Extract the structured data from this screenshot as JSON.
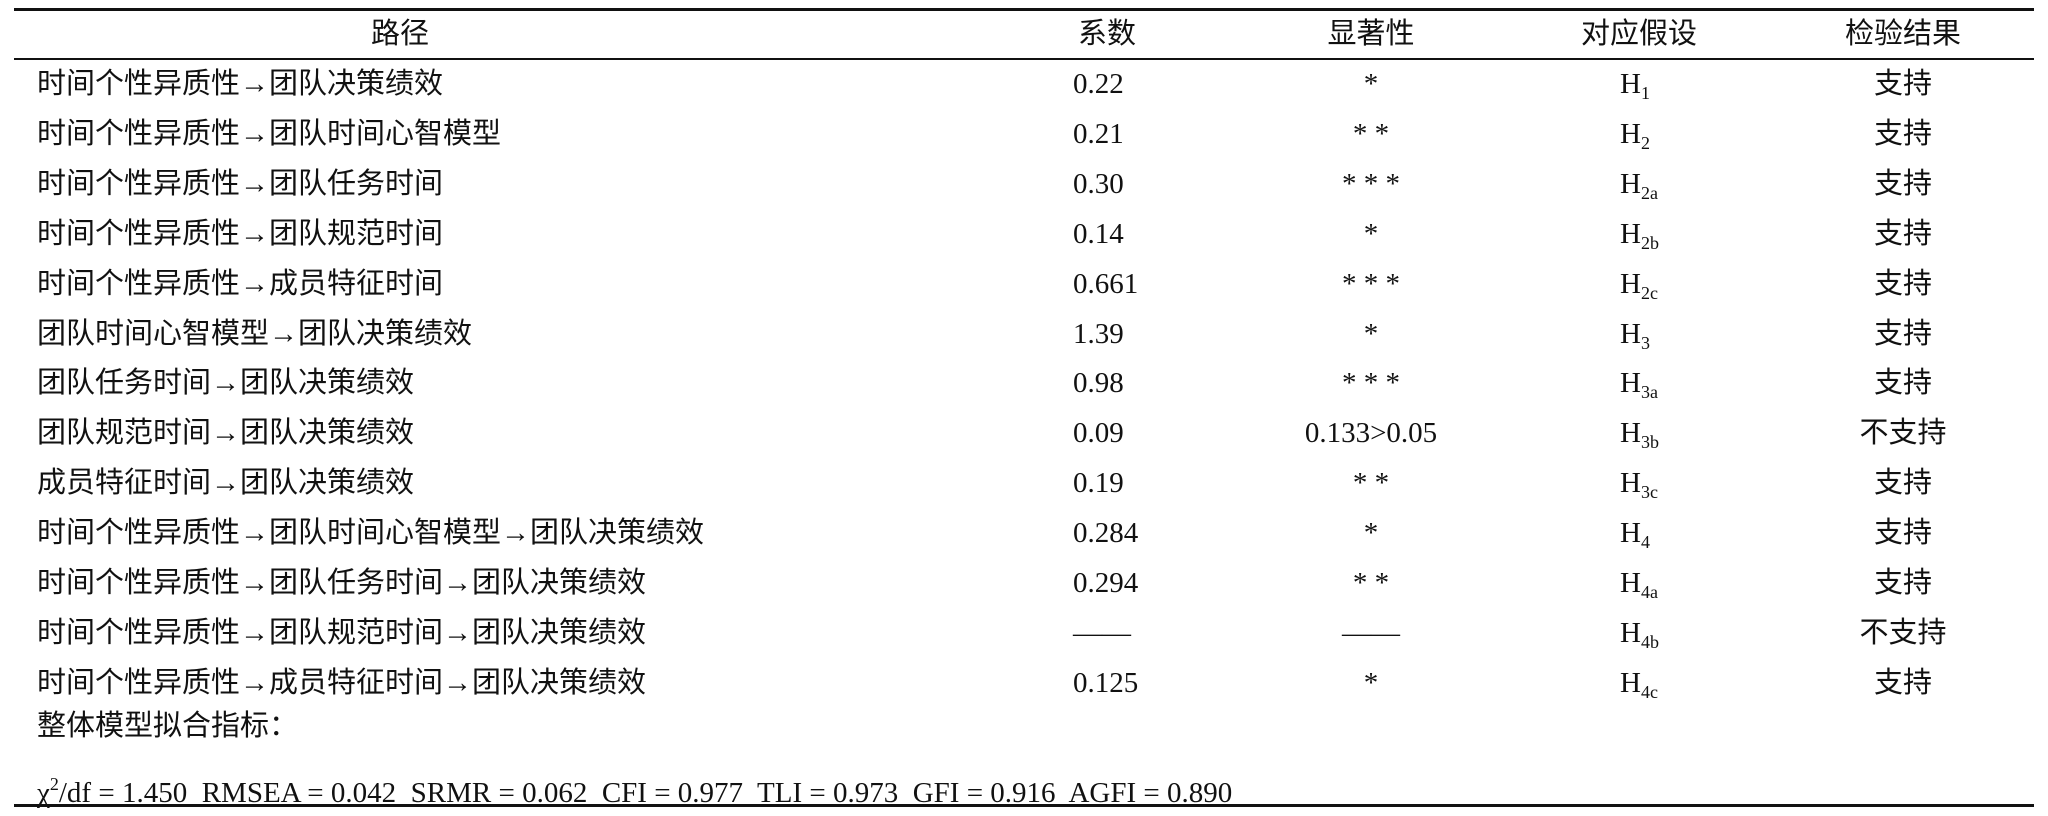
{
  "table": {
    "header": [
      "路径",
      "系数",
      "显著性",
      "对应假设",
      "检验结果"
    ],
    "rows": [
      [
        "时间个性异质性→团队决策绩效",
        "0.22",
        "*",
        {
          "base": "H",
          "sub": "1"
        },
        "支持"
      ],
      [
        "时间个性异质性→团队时间心智模型",
        "0.21",
        "* *",
        {
          "base": "H",
          "sub": "2"
        },
        "支持"
      ],
      [
        "时间个性异质性→团队任务时间",
        "0.30",
        "* * *",
        {
          "base": "H",
          "sub": "2a"
        },
        "支持"
      ],
      [
        "时间个性异质性→团队规范时间",
        "0.14",
        "*",
        {
          "base": "H",
          "sub": "2b"
        },
        "支持"
      ],
      [
        "时间个性异质性→成员特征时间",
        "0.661",
        "* * *",
        {
          "base": "H",
          "sub": "2c"
        },
        "支持"
      ],
      [
        "团队时间心智模型→团队决策绩效",
        "1.39",
        "*",
        {
          "base": "H",
          "sub": "3"
        },
        "支持"
      ],
      [
        "团队任务时间→团队决策绩效",
        "0.98",
        "* * *",
        {
          "base": "H",
          "sub": "3a"
        },
        "支持"
      ],
      [
        "团队规范时间→团队决策绩效",
        "0.09",
        "0.133>0.05",
        {
          "base": "H",
          "sub": "3b"
        },
        "不支持"
      ],
      [
        "成员特征时间→团队决策绩效",
        "0.19",
        "* *",
        {
          "base": "H",
          "sub": "3c"
        },
        "支持"
      ],
      [
        "时间个性异质性→团队时间心智模型→团队决策绩效",
        "0.284",
        "*",
        {
          "base": "H",
          "sub": "4"
        },
        "支持"
      ],
      [
        "时间个性异质性→团队任务时间→团队决策绩效",
        "0.294",
        "* *",
        {
          "base": "H",
          "sub": "4a"
        },
        "支持"
      ],
      [
        "时间个性异质性→团队规范时间→团队决策绩效",
        "——",
        "——",
        {
          "base": "H",
          "sub": "4b"
        },
        "不支持"
      ],
      [
        "时间个性异质性→成员特征时间→团队决策绩效",
        "0.125",
        "*",
        {
          "base": "H",
          "sub": "4c"
        },
        "支持"
      ]
    ],
    "footer": {
      "label": "整体模型拟合指标：",
      "fit": {
        "symbol": "χ",
        "sup": "2",
        "text": "/df = 1.450  RMSEA = 0.042  SRMR = 0.062  CFI = 0.977  TLI = 0.973  GFI = 0.916  AGFI = 0.890"
      }
    }
  }
}
